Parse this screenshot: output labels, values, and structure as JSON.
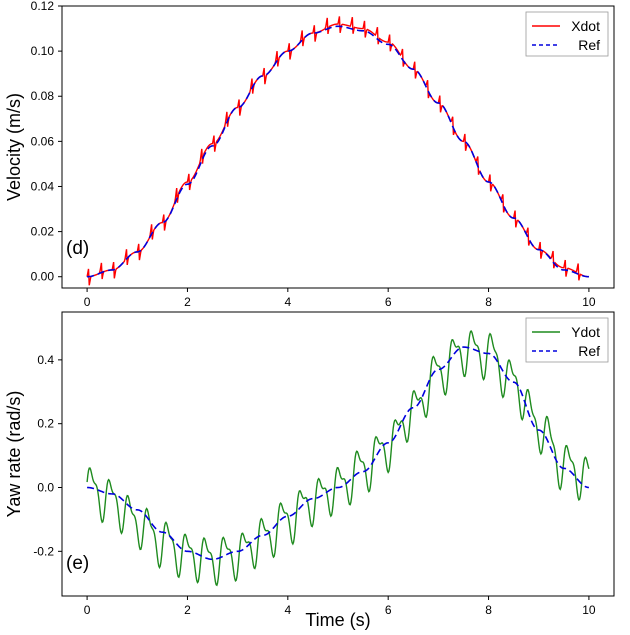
{
  "chart_data": [
    {
      "type": "line",
      "panel_tag": "(d)",
      "xlabel": "",
      "ylabel": "Velocity (m/s)",
      "xlim": [
        -0.5,
        10.5
      ],
      "ylim": [
        -0.005,
        0.12
      ],
      "x_ticks": [
        "0",
        "2",
        "4",
        "6",
        "8",
        "10"
      ],
      "y_ticks": [
        "0.00",
        "0.02",
        "0.04",
        "0.06",
        "0.08",
        "0.10",
        "0.12"
      ],
      "grid": false,
      "legend_position": "top-right",
      "series": [
        {
          "name": "Xdot",
          "color": "#ff0000",
          "style": "solid",
          "x": [
            0,
            0.5,
            1,
            1.5,
            2,
            2.5,
            3,
            3.5,
            4,
            4.5,
            5,
            5.5,
            6,
            6.5,
            7,
            7.5,
            8,
            8.5,
            9,
            9.5,
            10
          ],
          "values": [
            0.0,
            0.003,
            0.011,
            0.024,
            0.042,
            0.059,
            0.075,
            0.089,
            0.1,
            0.108,
            0.112,
            0.11,
            0.104,
            0.092,
            0.077,
            0.06,
            0.042,
            0.026,
            0.012,
            0.004,
            0.0
          ],
          "ripple": 0.0045,
          "ripple_period": 0.25
        },
        {
          "name": "Ref",
          "color": "#0000dd",
          "style": "dashed",
          "x": [
            0,
            0.5,
            1,
            1.5,
            2,
            2.5,
            3,
            3.5,
            4,
            4.5,
            5,
            5.5,
            6,
            6.5,
            7,
            7.5,
            8,
            8.5,
            9,
            9.5,
            10
          ],
          "values": [
            0.0,
            0.003,
            0.011,
            0.024,
            0.041,
            0.058,
            0.075,
            0.089,
            0.1,
            0.108,
            0.111,
            0.109,
            0.103,
            0.092,
            0.077,
            0.06,
            0.042,
            0.026,
            0.012,
            0.003,
            0.0
          ]
        }
      ]
    },
    {
      "type": "line",
      "panel_tag": "(e)",
      "xlabel": "Time (s)",
      "ylabel": "Yaw rate (rad/s)",
      "xlim": [
        -0.5,
        10.5
      ],
      "ylim": [
        -0.34,
        0.55
      ],
      "x_ticks": [
        "0",
        "2",
        "4",
        "6",
        "8",
        "10"
      ],
      "y_ticks": [
        "-0.2",
        "0.0",
        "0.2",
        "0.4"
      ],
      "grid": false,
      "legend_position": "top-right",
      "series": [
        {
          "name": "Ydot",
          "color": "#1f8b1f",
          "style": "solid",
          "x": [
            0,
            0.5,
            1,
            1.5,
            2,
            2.5,
            3,
            3.5,
            4,
            4.5,
            5,
            5.5,
            6,
            6.5,
            7,
            7.5,
            8,
            8.5,
            9,
            9.5,
            10
          ],
          "values": [
            0.0,
            -0.04,
            -0.11,
            -0.17,
            -0.21,
            -0.225,
            -0.21,
            -0.16,
            -0.1,
            -0.04,
            0.0,
            0.06,
            0.13,
            0.24,
            0.36,
            0.43,
            0.42,
            0.33,
            0.19,
            0.07,
            0.03
          ],
          "oscillation_amplitude": 0.075,
          "oscillation_period": 0.38
        },
        {
          "name": "Ref",
          "color": "#0000dd",
          "style": "dashed",
          "x": [
            0,
            0.5,
            1,
            1.5,
            2,
            2.5,
            3,
            3.5,
            4,
            4.5,
            5,
            5.5,
            6,
            6.5,
            7,
            7.5,
            8,
            8.5,
            9,
            9.5,
            10
          ],
          "values": [
            0.0,
            -0.02,
            -0.07,
            -0.14,
            -0.2,
            -0.225,
            -0.2,
            -0.15,
            -0.09,
            -0.035,
            0.0,
            0.05,
            0.14,
            0.25,
            0.37,
            0.44,
            0.42,
            0.33,
            0.18,
            0.06,
            0.0
          ]
        }
      ]
    }
  ]
}
